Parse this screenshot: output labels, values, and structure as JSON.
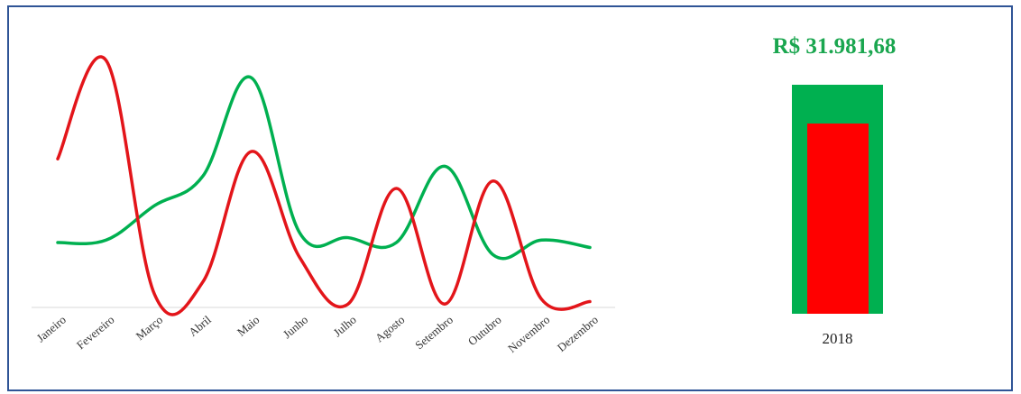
{
  "chart_data": [
    {
      "type": "line",
      "categories": [
        "Janeiro",
        "Fevereiro",
        "Março",
        "Abril",
        "Maio",
        "Junho",
        "Julho",
        "Agosto",
        "Setembro",
        "Outubro",
        "Novembro",
        "Dezembro"
      ],
      "series": [
        {
          "color": "#00b050",
          "values": [
            0.26,
            0.27,
            0.41,
            0.53,
            0.93,
            0.3,
            0.28,
            0.26,
            0.57,
            0.21,
            0.27,
            0.24
          ]
        },
        {
          "color": "#e3151a",
          "values": [
            0.6,
            1.0,
            0.05,
            0.1,
            0.63,
            0.2,
            0.01,
            0.48,
            0.01,
            0.51,
            0.03,
            0.02
          ]
        }
      ],
      "ylim": [
        0,
        1
      ],
      "grid": false,
      "legend": "none"
    },
    {
      "type": "bar",
      "categories": [
        "2018"
      ],
      "title": "R$ 31.981,68",
      "title_color": "#1aa64f",
      "series": [
        {
          "color": "#00b050",
          "values": [
            1.0
          ]
        },
        {
          "color": "#ff0000",
          "values": [
            0.83
          ]
        }
      ]
    }
  ]
}
